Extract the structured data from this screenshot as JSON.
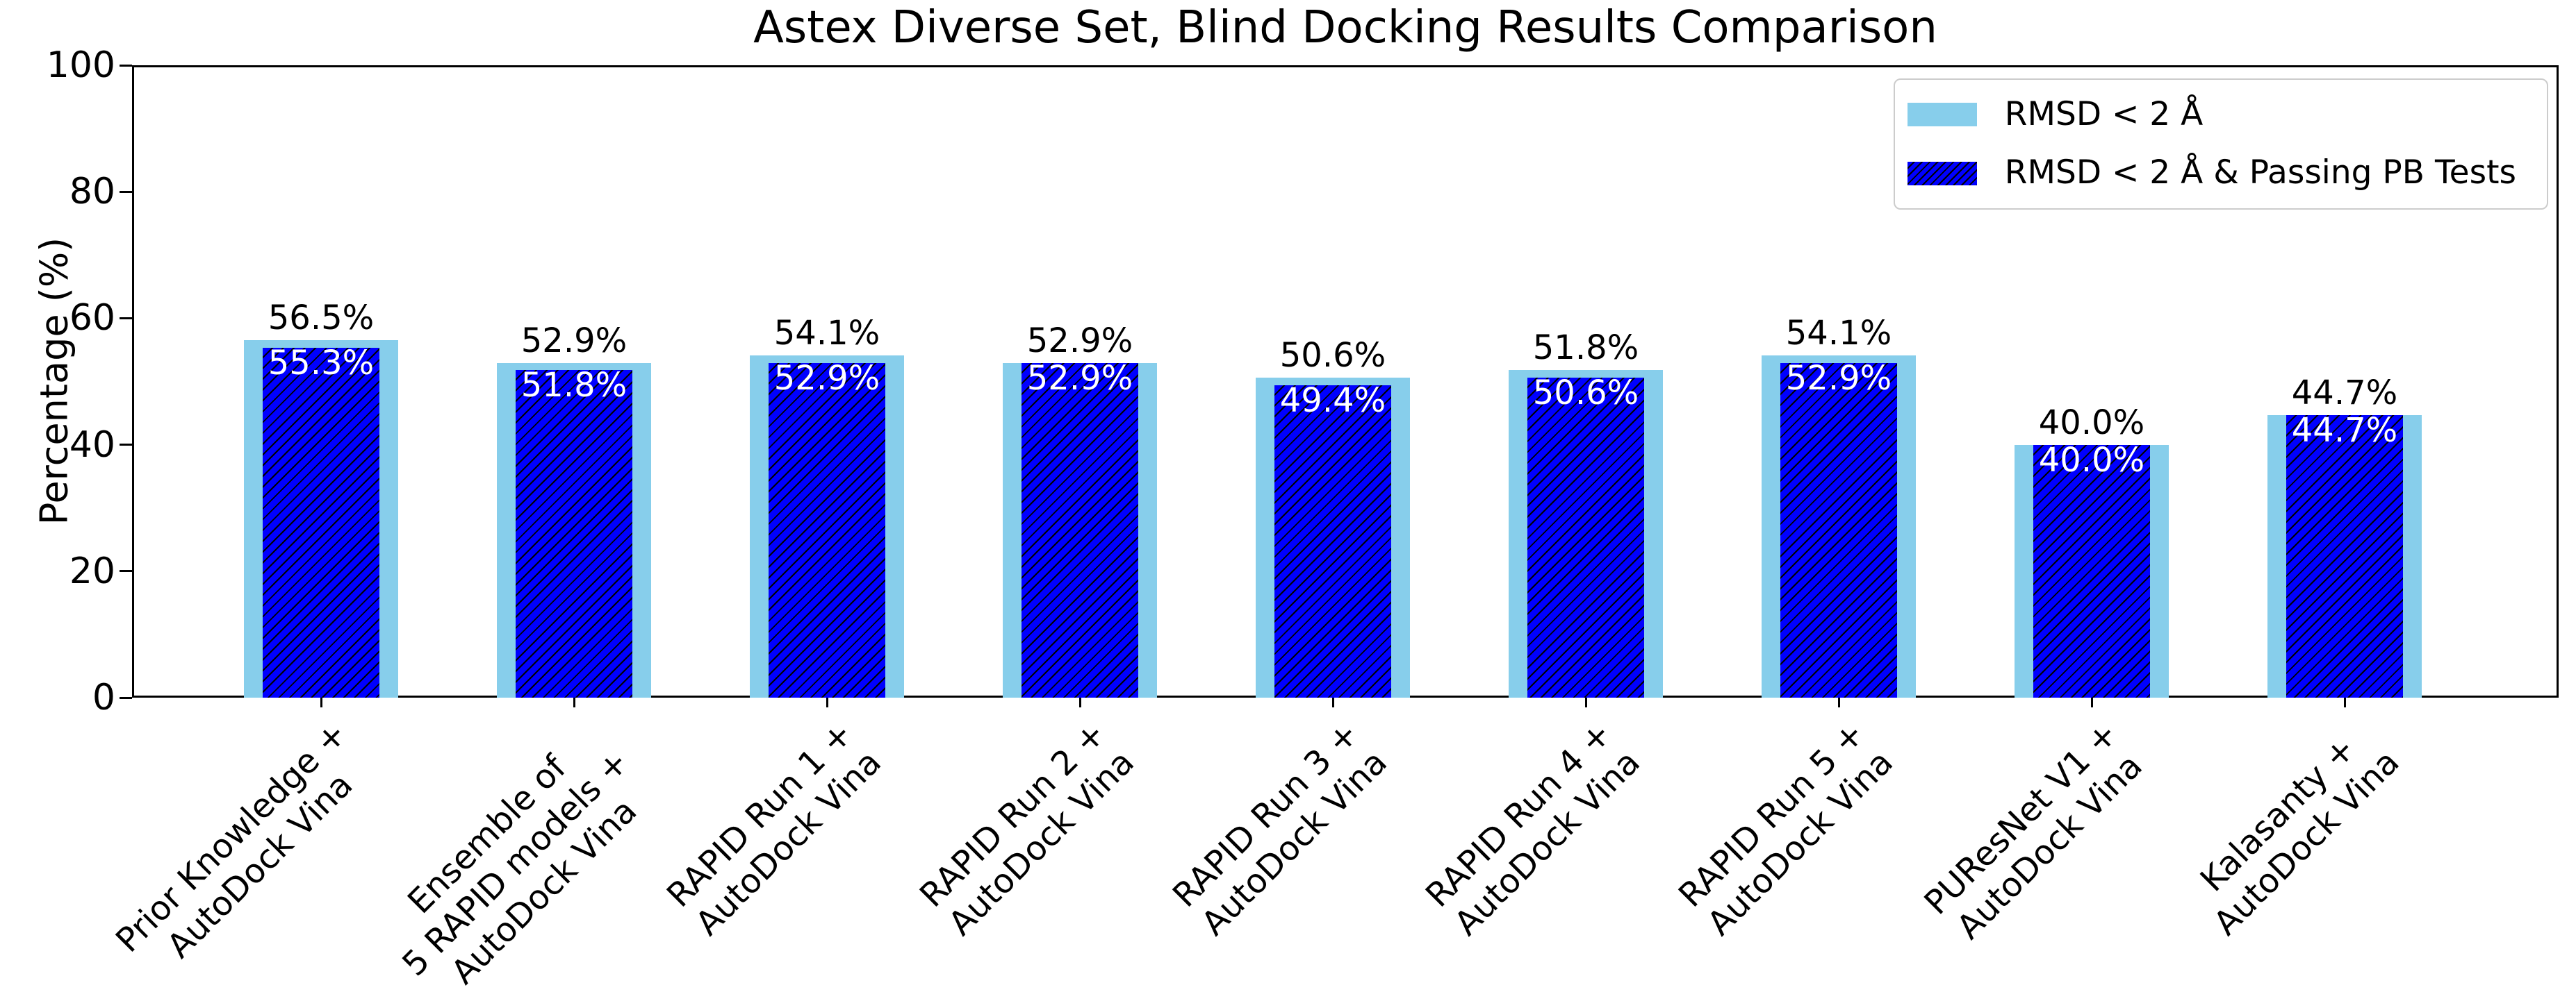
{
  "title": "Astex Diverse Set, Blind Docking Results Comparison",
  "ylabel": "Percentage (%)",
  "colors": {
    "bar_light": "#87CEEB",
    "bar_dark": "#0000FF",
    "hatch": "#000000",
    "value_label_above": "#000000",
    "value_label_inside": "#FFFFFF",
    "spine": "#000000",
    "legend_border": "#CCCCCC",
    "background": "#FFFFFF"
  },
  "legend": {
    "items": [
      {
        "label": "RMSD < 2 Å",
        "swatch": "light"
      },
      {
        "label": "RMSD < 2 Å & Passing PB Tests",
        "swatch": "dark-hatched"
      }
    ],
    "position": "upper right"
  },
  "chart_data": {
    "type": "bar",
    "title": "Astex Diverse Set, Blind Docking Results Comparison",
    "xlabel": "",
    "ylabel": "Percentage (%)",
    "ylim": [
      0,
      100
    ],
    "yticks": [
      0,
      20,
      40,
      60,
      80,
      100
    ],
    "grid": false,
    "legend_position": "upper right",
    "categories": [
      "Prior Knowledge +\nAutoDock Vina",
      "Ensemble of\n5 RAPID models +\nAutoDock Vina",
      "RAPID Run 1 +\nAutoDock Vina",
      "RAPID Run 2 +\nAutoDock Vina",
      "RAPID Run 3 +\nAutoDock Vina",
      "RAPID Run 4 +\nAutoDock Vina",
      "RAPID Run 5 +\nAutoDock Vina",
      "PUResNet V1 +\nAutoDock Vina",
      "Kalasanty +\nAutoDock Vina"
    ],
    "series": [
      {
        "name": "RMSD < 2 Å",
        "values": [
          56.5,
          52.9,
          54.1,
          52.9,
          50.6,
          51.8,
          54.1,
          40.0,
          44.7
        ],
        "labels": [
          "56.5%",
          "52.9%",
          "54.1%",
          "52.9%",
          "50.6%",
          "51.8%",
          "54.1%",
          "40.0%",
          "44.7%"
        ]
      },
      {
        "name": "RMSD < 2 Å & Passing PB Tests",
        "values": [
          55.3,
          51.8,
          52.9,
          52.9,
          49.4,
          50.6,
          52.9,
          40.0,
          44.7
        ],
        "labels": [
          "55.3%",
          "51.8%",
          "52.9%",
          "52.9%",
          "49.4%",
          "50.6%",
          "52.9%",
          "40.0%",
          "44.7%"
        ]
      }
    ]
  }
}
